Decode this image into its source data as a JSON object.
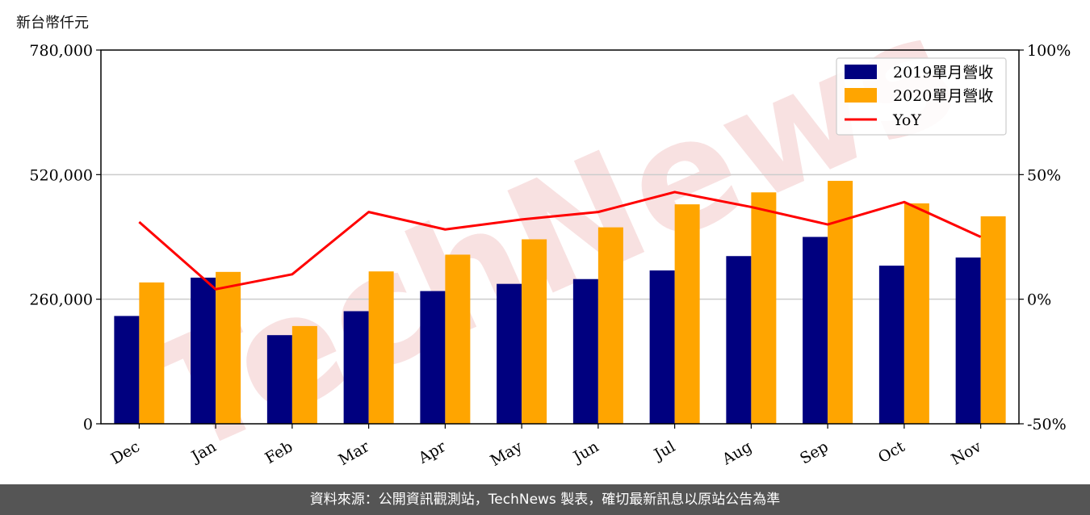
{
  "unit_label": "新台幣仟元",
  "watermark": "TechNews",
  "footer_text": "資料來源：公開資訊觀測站，TechNews 製表，確切最新訊息以原站公告為準",
  "colors": {
    "series_2019": "#00007f",
    "series_2020": "#ffa500",
    "yoy": "#ff0000",
    "grid": "#cccccc",
    "footer_bg": "#555555",
    "watermark": "#f3c9c9"
  },
  "chart_data": {
    "type": "bar",
    "categories": [
      "Dec",
      "Jan",
      "Feb",
      "Mar",
      "Apr",
      "May",
      "Jun",
      "Jul",
      "Aug",
      "Sep",
      "Oct",
      "Nov"
    ],
    "series": [
      {
        "name": "2019單月營收",
        "values": [
          225000,
          305000,
          185000,
          235000,
          277000,
          292000,
          302000,
          320000,
          350000,
          390000,
          330000,
          347000
        ]
      },
      {
        "name": "2020單月營收",
        "values": [
          295000,
          317000,
          204000,
          318000,
          353000,
          385000,
          410000,
          458000,
          483000,
          507000,
          460000,
          433000
        ]
      }
    ],
    "line_series": [
      {
        "name": "YoY",
        "axis": "right",
        "values": [
          31,
          4,
          10,
          35,
          28,
          32,
          35,
          43,
          37,
          30,
          39,
          25
        ]
      }
    ],
    "y_left": {
      "ylim": [
        0,
        780000
      ],
      "ticks": [
        "0",
        "260,000",
        "520,000",
        "780,000"
      ],
      "tick_values": [
        0,
        260000,
        520000,
        780000
      ]
    },
    "y_right": {
      "ylim": [
        -50,
        100
      ],
      "ticks": [
        "-50%",
        "0%",
        "50%",
        "100%"
      ],
      "tick_values": [
        -50,
        0,
        50,
        100
      ]
    },
    "grid": "horizontal",
    "legend_position": "top-right",
    "legend": [
      "2019單月營收",
      "2020單月營收",
      "YoY"
    ]
  }
}
